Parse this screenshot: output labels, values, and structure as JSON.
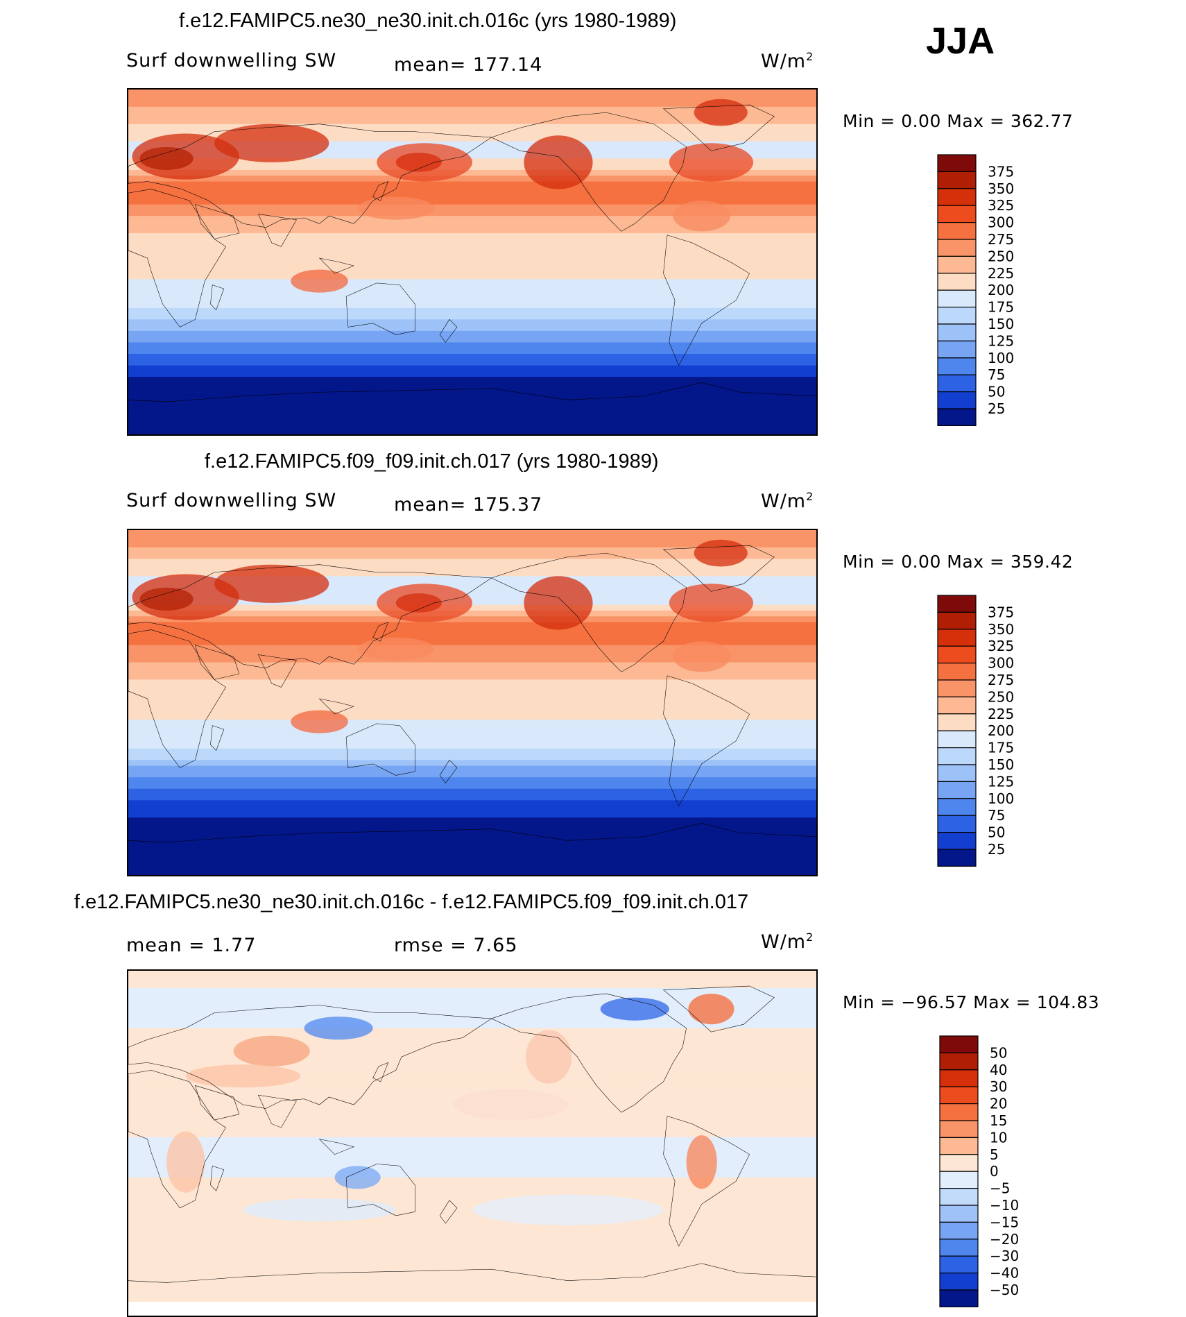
{
  "season": "JJA",
  "colors": {
    "warm": [
      "#ffe6d2",
      "#fdcab0",
      "#fcaa86",
      "#f88a5f",
      "#f26840",
      "#e84824",
      "#d42e0e",
      "#b32206",
      "#8c0a0a"
    ],
    "cool": [
      "#ddecfc",
      "#c1dcfb",
      "#a3c7f9",
      "#80adf5",
      "#5a8ff0",
      "#3a6ee8",
      "#1f4fe0",
      "#0c35c2",
      "#06239a",
      "#020f80"
    ],
    "land_outline": "#000000"
  },
  "panels": [
    {
      "id": "top",
      "title": "f.e12.FAMIPC5.ne30_ne30.init.ch.016c (yrs 1980-1989)",
      "left_label": "Surf  downwelling  SW",
      "center_label": "mean=  177.14",
      "units": "W/m",
      "units_sup": "2",
      "minmax": "Min  =      0.00  Max  =  362.77"
    },
    {
      "id": "middle",
      "title": "f.e12.FAMIPC5.f09_f09.init.ch.017 (yrs 1980-1989)",
      "left_label": "Surf  downwelling  SW",
      "center_label": "mean=  175.37",
      "units": "W/m",
      "units_sup": "2",
      "minmax": "Min  =      0.00  Max  =  359.42"
    },
    {
      "id": "bottom",
      "title": "f.e12.FAMIPC5.ne30_ne30.init.ch.016c - f.e12.FAMIPC5.f09_f09.init.ch.017",
      "left_label": "mean  =     1.77",
      "center_label": "rmse  =     7.65",
      "units": "W/m",
      "units_sup": "2",
      "minmax": "Min  = −96.57  Max  =  104.83"
    }
  ],
  "chart_data": [
    {
      "type": "heatmap",
      "title": "f.e12.FAMIPC5.ne30_ne30.init.ch.016c (yrs 1980-1989)",
      "variable": "Surf  downwelling  SW",
      "units": "W/m2",
      "mean": 177.14,
      "min": 0.0,
      "max": 362.77,
      "colorbar_levels": [
        25,
        50,
        75,
        100,
        125,
        150,
        175,
        200,
        225,
        250,
        275,
        300,
        325,
        350,
        375
      ],
      "colorbar_labels": [
        "375",
        "350",
        "325",
        "300",
        "275",
        "250",
        "225",
        "200",
        "175",
        "150",
        "125",
        "100",
        "75",
        "50",
        "25"
      ],
      "lat_profile": [
        [
          90,
          260
        ],
        [
          80,
          250
        ],
        [
          70,
          215
        ],
        [
          60,
          190
        ],
        [
          50,
          205
        ],
        [
          40,
          290
        ],
        [
          30,
          275
        ],
        [
          20,
          240
        ],
        [
          10,
          215
        ],
        [
          0,
          215
        ],
        [
          -10,
          200
        ],
        [
          -20,
          190
        ],
        [
          -30,
          150
        ],
        [
          -40,
          105
        ],
        [
          -50,
          60
        ],
        [
          -60,
          25
        ],
        [
          -70,
          5
        ],
        [
          -90,
          0
        ]
      ]
    },
    {
      "type": "heatmap",
      "title": "f.e12.FAMIPC5.f09_f09.init.ch.017 (yrs 1980-1989)",
      "variable": "Surf  downwelling  SW",
      "units": "W/m2",
      "mean": 175.37,
      "min": 0.0,
      "max": 359.42,
      "colorbar_levels": [
        25,
        50,
        75,
        100,
        125,
        150,
        175,
        200,
        225,
        250,
        275,
        300,
        325,
        350,
        375
      ],
      "colorbar_labels": [
        "375",
        "350",
        "325",
        "300",
        "275",
        "250",
        "225",
        "200",
        "175",
        "150",
        "125",
        "100",
        "75",
        "50",
        "25"
      ],
      "lat_profile": [
        [
          90,
          265
        ],
        [
          80,
          250
        ],
        [
          70,
          210
        ],
        [
          60,
          185
        ],
        [
          50,
          200
        ],
        [
          40,
          290
        ],
        [
          30,
          275
        ],
        [
          20,
          245
        ],
        [
          10,
          215
        ],
        [
          0,
          210
        ],
        [
          -10,
          200
        ],
        [
          -20,
          185
        ],
        [
          -30,
          145
        ],
        [
          -40,
          100
        ],
        [
          -50,
          55
        ],
        [
          -60,
          20
        ],
        [
          -70,
          5
        ],
        [
          -90,
          0
        ]
      ]
    },
    {
      "type": "heatmap",
      "title": "f.e12.FAMIPC5.ne30_ne30.init.ch.016c - f.e12.FAMIPC5.f09_f09.init.ch.017",
      "units": "W/m2",
      "mean": 1.77,
      "rmse": 7.65,
      "min": -96.57,
      "max": 104.83,
      "colorbar_levels": [
        -50,
        -40,
        -30,
        -20,
        -15,
        -10,
        -5,
        0,
        5,
        10,
        15,
        20,
        30,
        40,
        50
      ],
      "colorbar_labels": [
        "50",
        "40",
        "30",
        "20",
        "15",
        "10",
        "5",
        "0",
        "−5",
        "−10",
        "−15",
        "−20",
        "−30",
        "−40",
        "−50"
      ],
      "lat_profile": [
        [
          90,
          2
        ],
        [
          70,
          -3
        ],
        [
          50,
          3
        ],
        [
          30,
          4
        ],
        [
          10,
          2
        ],
        [
          -10,
          -2
        ],
        [
          -30,
          1
        ],
        [
          -50,
          3
        ],
        [
          -70,
          2
        ],
        [
          -90,
          0
        ]
      ]
    }
  ]
}
